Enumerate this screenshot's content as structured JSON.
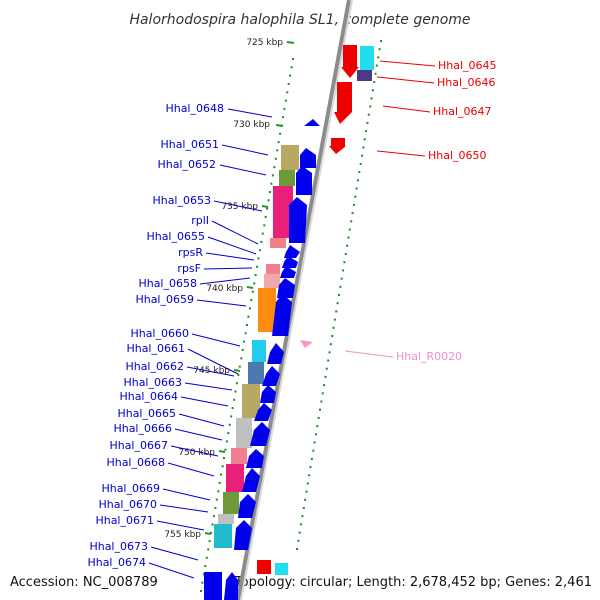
{
  "title": "Halorhodospira halophila SL1, complete genome",
  "footer": {
    "accession": "Accession: NC_008789",
    "topology": "Topology: circular; Length: 2,678,452 bp; Genes: 2,461"
  },
  "colors": {
    "forward": "#0000ee",
    "reverse": "#ee0000",
    "rna": "#f080c0",
    "backbone": "#888888",
    "tick": "#229922"
  },
  "ruler": [
    {
      "label": "725 kbp"
    },
    {
      "label": "730 kbp"
    },
    {
      "label": "735 kbp"
    },
    {
      "label": "740 kbp"
    },
    {
      "label": "745 kbp"
    },
    {
      "label": "750 kbp"
    },
    {
      "label": "755 kbp"
    }
  ],
  "reverse_labels": [
    "Hhal_0645",
    "Hhal_0646",
    "Hhal_0647",
    "Hhal_0650"
  ],
  "rna_labels": [
    "Hhal_R0020"
  ],
  "forward_labels": [
    "Hhal_0648",
    "Hhal_0651",
    "Hhal_0652",
    "Hhal_0653",
    "rplI",
    "Hhal_0655",
    "rpsR",
    "rpsF",
    "Hhal_0658",
    "Hhal_0659",
    "Hhal_0660",
    "Hhal_0661",
    "Hhal_0662",
    "Hhal_0663",
    "Hhal_0664",
    "Hhal_0665",
    "Hhal_0666",
    "Hhal_0667",
    "Hhal_0668",
    "Hhal_0669",
    "Hhal_0670",
    "Hhal_0671",
    "Hhal_0673",
    "Hhal_0674"
  ]
}
